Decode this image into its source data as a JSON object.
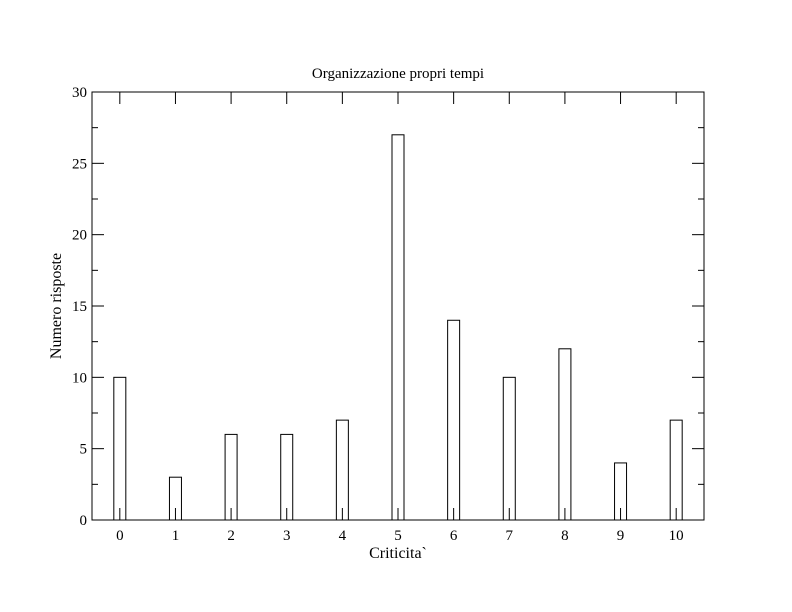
{
  "chart_data": {
    "type": "bar",
    "title": "Organizzazione propri tempi",
    "xlabel": "Criticita`",
    "ylabel": "Numero risposte",
    "categories": [
      "0",
      "1",
      "2",
      "3",
      "4",
      "5",
      "6",
      "7",
      "8",
      "9",
      "10"
    ],
    "values": [
      10,
      3,
      6,
      6,
      7,
      27,
      14,
      10,
      12,
      4,
      7
    ],
    "ylim": [
      0,
      30
    ],
    "xlim": [
      -0.5,
      10.5
    ],
    "yticks": [
      "0",
      "5",
      "10",
      "15",
      "20",
      "25",
      "30"
    ],
    "grid": false,
    "legend": "none",
    "bar_fill": "#ffffff",
    "bar_stroke": "#000000"
  }
}
